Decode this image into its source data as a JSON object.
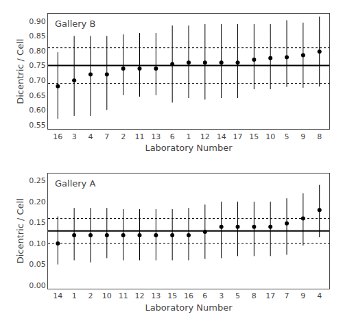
{
  "chart_data": [
    {
      "type": "scatter",
      "title": "Gallery B",
      "xlabel": "Laboratory Number",
      "ylabel": "Dicentric / Cell",
      "categories": [
        "16",
        "3",
        "4",
        "7",
        "2",
        "11",
        "13",
        "6",
        "1",
        "12",
        "14",
        "17",
        "15",
        "10",
        "5",
        "9",
        "8"
      ],
      "values": [
        0.68,
        0.7,
        0.72,
        0.72,
        0.74,
        0.74,
        0.74,
        0.755,
        0.76,
        0.76,
        0.76,
        0.76,
        0.77,
        0.775,
        0.778,
        0.785,
        0.797
      ],
      "yerr_low": [
        0.11,
        0.12,
        0.14,
        0.12,
        0.09,
        0.095,
        0.09,
        0.13,
        0.12,
        0.125,
        0.12,
        0.12,
        0.1,
        0.105,
        0.1,
        0.11,
        0.118
      ],
      "yerr_high": [
        0.115,
        0.15,
        0.13,
        0.13,
        0.115,
        0.12,
        0.12,
        0.13,
        0.125,
        0.13,
        0.13,
        0.13,
        0.12,
        0.115,
        0.125,
        0.11,
        0.118
      ],
      "robust_mean": 0.75,
      "upper_limit": 0.81,
      "lower_limit": 0.69,
      "ylim": [
        0.535,
        0.925
      ],
      "yticks": [
        0.55,
        {
          "value": 0.6,
          "label": "0.60"
        },
        0.65,
        {
          "value": 0.7,
          "label": "0.70"
        },
        0.75,
        {
          "value": 0.8,
          "label": "0.80"
        },
        0.85,
        {
          "value": 0.9,
          "label": "0.90"
        }
      ],
      "color": "#000000",
      "marker": "circle",
      "grid": false
    },
    {
      "type": "scatter",
      "title": "Gallery A",
      "xlabel": "Laboratory Number",
      "ylabel": "Dicentric / Cell",
      "categories": [
        "14",
        "1",
        "2",
        "10",
        "11",
        "12",
        "13",
        "15",
        "16",
        "6",
        "3",
        "5",
        "8",
        "17",
        "7",
        "9",
        "4"
      ],
      "values": [
        0.1,
        0.12,
        0.12,
        0.12,
        0.12,
        0.12,
        0.12,
        0.12,
        0.12,
        0.128,
        0.14,
        0.14,
        0.14,
        0.14,
        0.148,
        0.16,
        0.18
      ],
      "yerr_low": [
        0.05,
        0.06,
        0.065,
        0.055,
        0.06,
        0.06,
        0.06,
        0.06,
        0.06,
        0.065,
        0.075,
        0.07,
        0.07,
        0.07,
        0.075,
        0.065,
        0.065
      ],
      "yerr_high": [
        0.065,
        0.065,
        0.065,
        0.065,
        0.062,
        0.062,
        0.062,
        0.062,
        0.065,
        0.065,
        0.06,
        0.06,
        0.06,
        0.06,
        0.06,
        0.06,
        0.06
      ],
      "robust_mean": 0.13,
      "upper_limit": 0.16,
      "lower_limit": 0.1,
      "ylim": [
        -0.008,
        0.268
      ],
      "yticks": [
        {
          "value": 0.0,
          "label": "0.00"
        },
        0.05,
        {
          "value": 0.1,
          "label": "0.10"
        },
        0.15,
        {
          "value": 0.2,
          "label": "0.20"
        },
        0.25
      ],
      "color": "#000000",
      "marker": "circle",
      "grid": false
    }
  ]
}
